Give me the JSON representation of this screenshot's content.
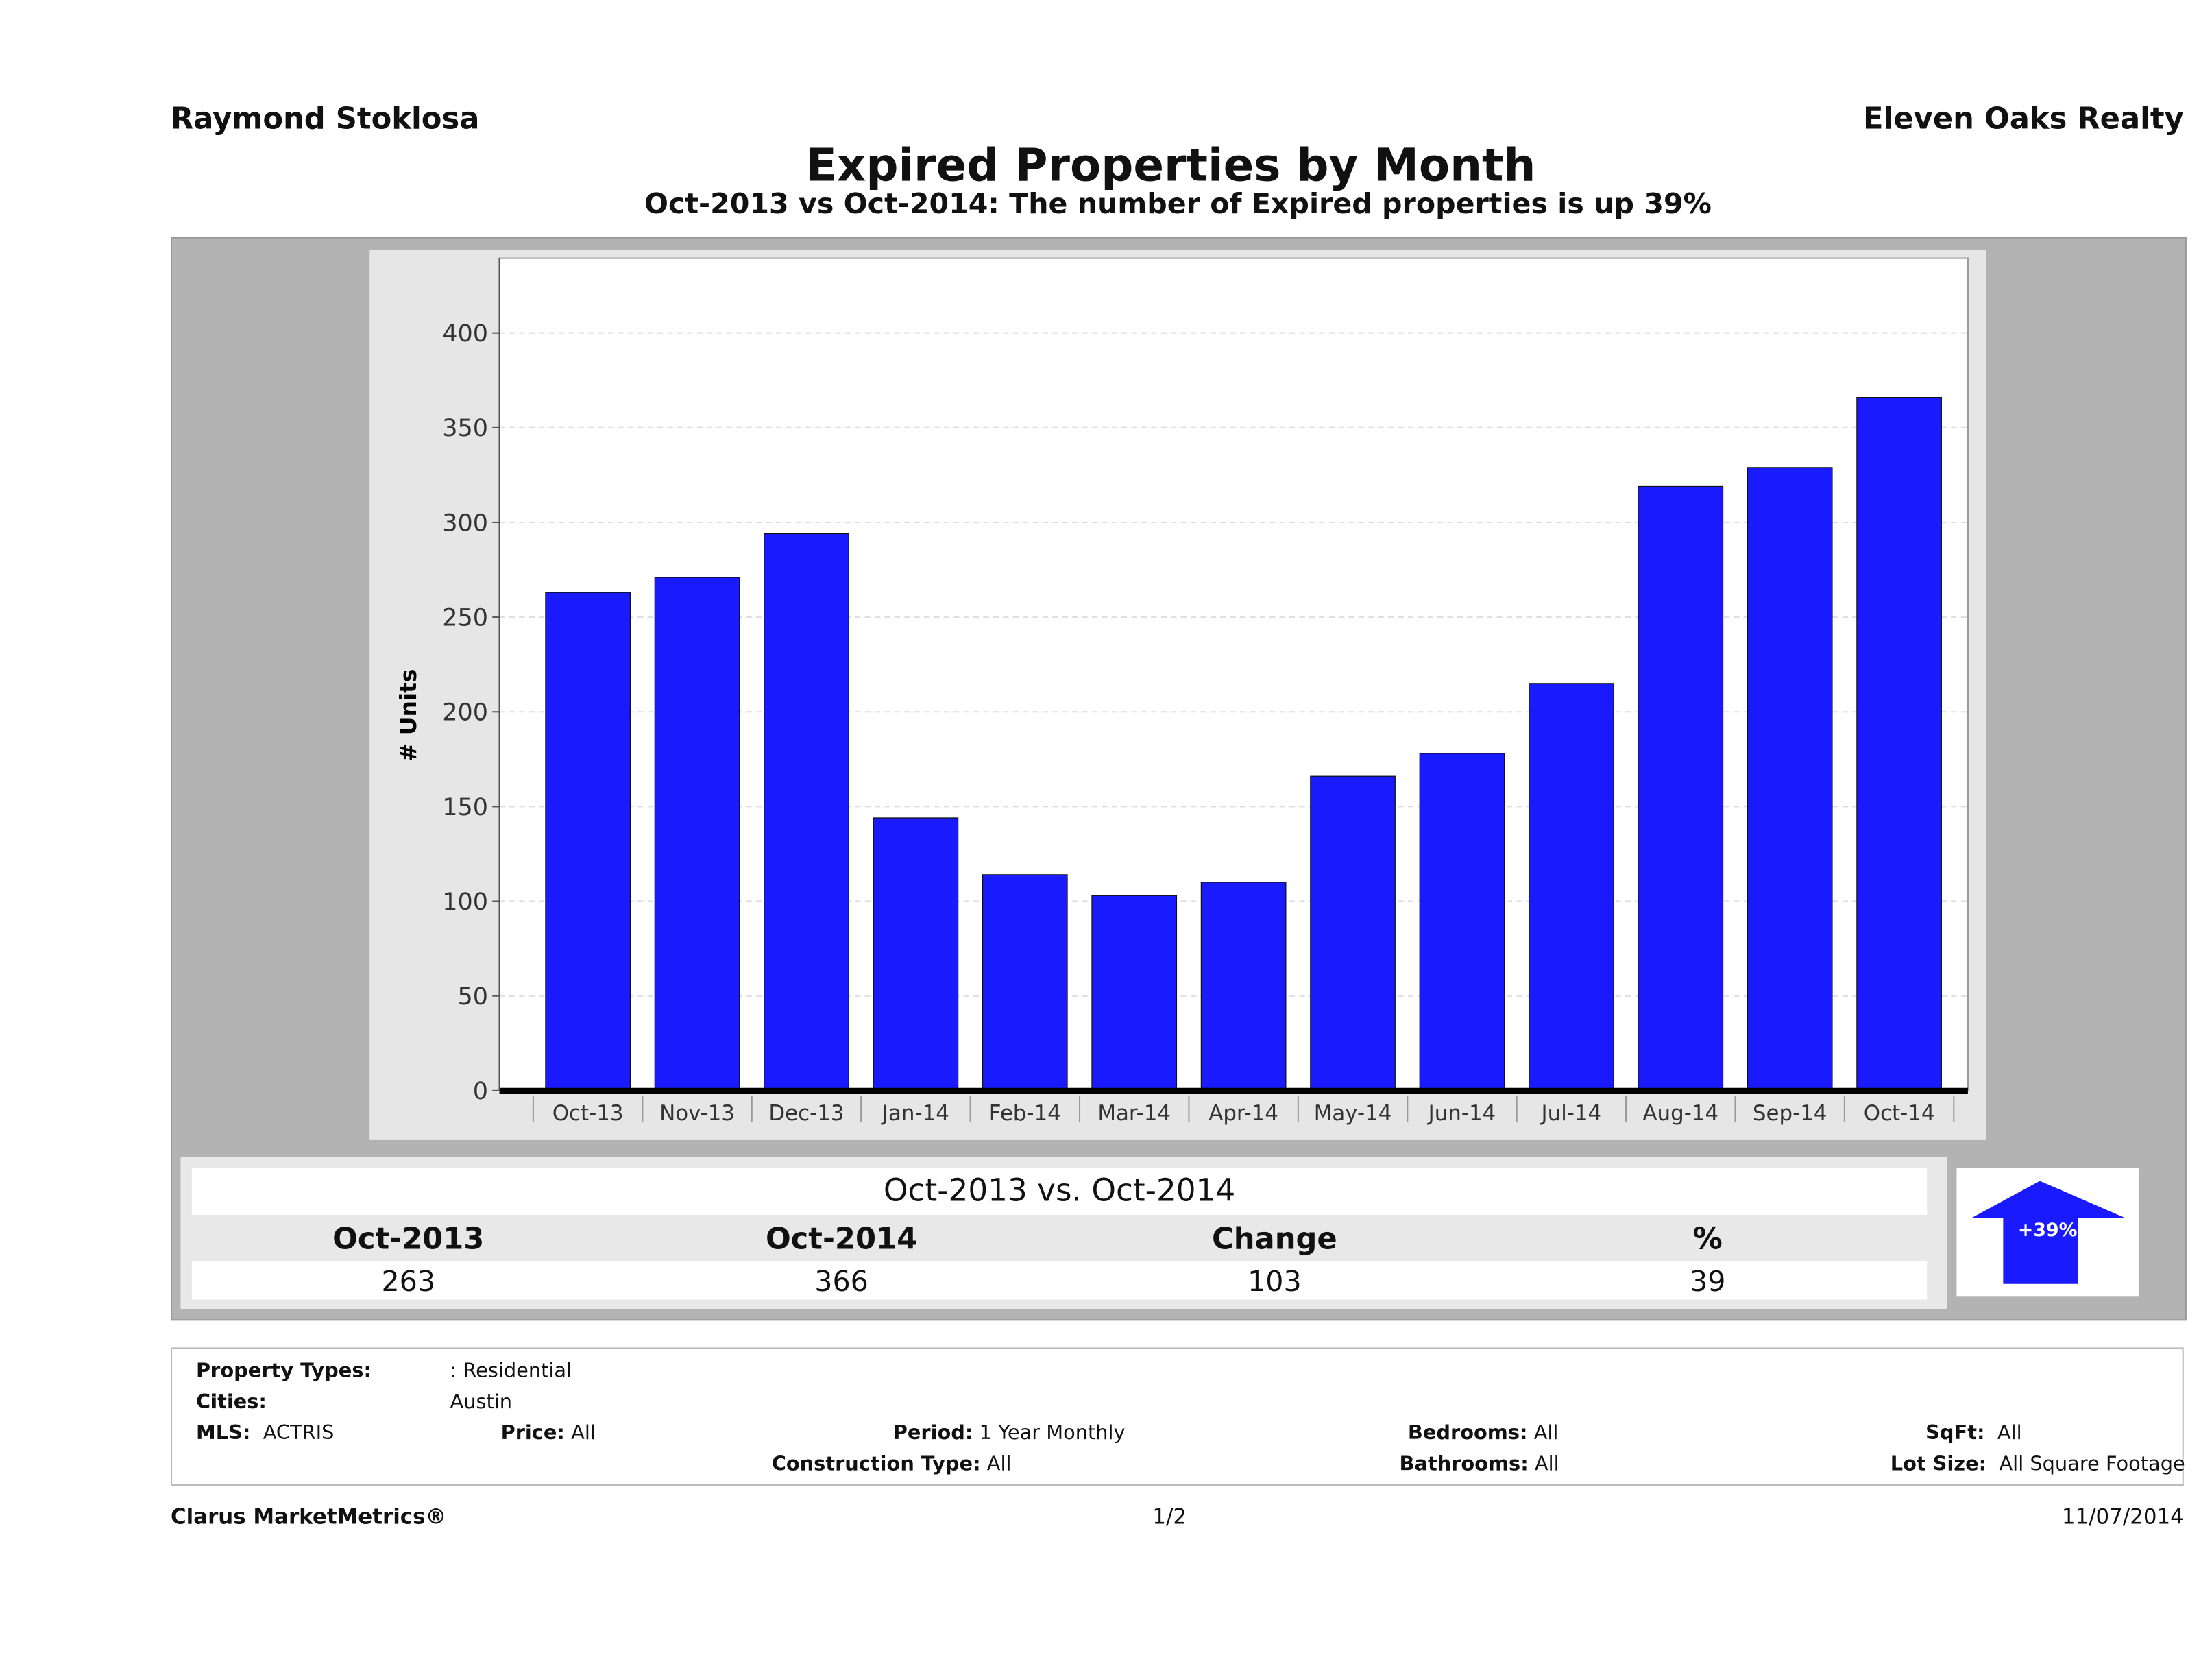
{
  "header": {
    "agent": "Raymond Stoklosa",
    "company": "Eleven Oaks Realty"
  },
  "chart_data": {
    "type": "bar",
    "title": "Expired Properties by Month",
    "subtitle": "Oct-2013 vs Oct-2014: The number of Expired  properties is up 39%",
    "xlabel": "",
    "ylabel": "# Units",
    "ylim": [
      0,
      440
    ],
    "yticks": [
      0,
      50,
      100,
      150,
      200,
      250,
      300,
      350,
      400
    ],
    "grid": true,
    "categories": [
      "Oct-13",
      "Nov-13",
      "Dec-13",
      "Jan-14",
      "Feb-14",
      "Mar-14",
      "Apr-14",
      "May-14",
      "Jun-14",
      "Jul-14",
      "Aug-14",
      "Sep-14",
      "Oct-14"
    ],
    "values": [
      263,
      271,
      294,
      144,
      114,
      103,
      110,
      166,
      178,
      215,
      319,
      329,
      366
    ],
    "bar_color": "#1a1aff"
  },
  "summary": {
    "heading": "Oct-2013 vs. Oct-2014",
    "columns": [
      "Oct-2013",
      "Oct-2014",
      "Change",
      "%"
    ],
    "values": [
      "263",
      "366",
      "103",
      "39"
    ],
    "badge": "+39%",
    "badge_icon": "arrow-up-icon"
  },
  "criteria": {
    "property_types_label": "Property Types:",
    "property_types": ": Residential",
    "cities_label": "Cities:",
    "cities": "Austin",
    "mls_label": "MLS:",
    "mls": "ACTRIS",
    "price_label": "Price:",
    "price": "All",
    "period_label": "Period:",
    "period": "1 Year Monthly",
    "construction_label": "Construction Type:",
    "construction": "All",
    "bedrooms_label": "Bedrooms:",
    "bedrooms": "All",
    "bathrooms_label": "Bathrooms:",
    "bathrooms": "All",
    "sqft_label": "SqFt:",
    "sqft": "All",
    "lotsize_label": "Lot Size:",
    "lotsize": "All Square Footage"
  },
  "footer": {
    "brand": "Clarus MarketMetrics®",
    "page": "1/2",
    "date": "11/07/2014"
  }
}
